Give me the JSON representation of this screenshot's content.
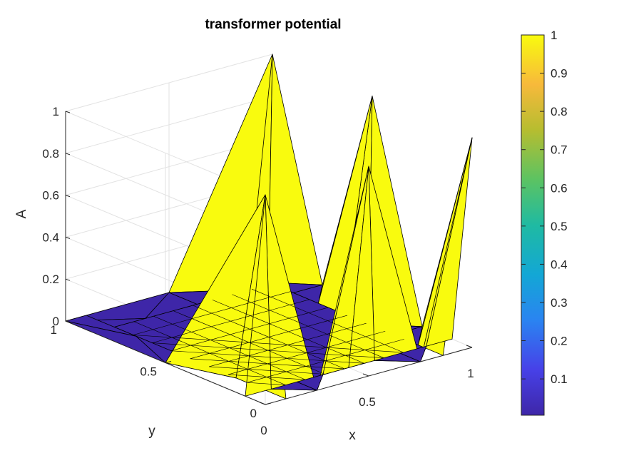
{
  "chart_data": {
    "type": "surface",
    "title": "transformer potential",
    "xlabel": "x",
    "ylabel": "y",
    "zlabel": "A",
    "xlim": [
      0,
      1
    ],
    "ylim": [
      0,
      1
    ],
    "zlim": [
      0,
      1
    ],
    "x_ticks": [
      "0",
      "0.5",
      "1"
    ],
    "y_ticks": [
      "0",
      "0.5",
      "1"
    ],
    "z_ticks": [
      "0",
      "0.2",
      "0.4",
      "0.6",
      "0.8",
      "1"
    ],
    "colorbar": {
      "ticks": [
        "0.1",
        "0.2",
        "0.3",
        "0.4",
        "0.5",
        "0.6",
        "0.7",
        "0.8",
        "0.9",
        "1"
      ],
      "colormap": "parula",
      "colors": [
        "#3e26a8",
        "#4741e8",
        "#2a84f1",
        "#13a7d5",
        "#1fbaa2",
        "#5cc362",
        "#b6bd30",
        "#f7b93b",
        "#f9fb0e"
      ]
    },
    "surface_colors": {
      "high": "#f9fb0e",
      "low": "#3e26a8"
    },
    "boundary_x_y0": [
      {
        "x": 0,
        "A": 1
      },
      {
        "x": 0.25,
        "A": 0
      },
      {
        "x": 0.5,
        "A": 1
      },
      {
        "x": 0.75,
        "A": 0
      },
      {
        "x": 1,
        "A": 1
      }
    ],
    "boundary_y_x1": [
      {
        "y": 0,
        "A": 1
      },
      {
        "y": 0.25,
        "A": 0
      },
      {
        "y": 0.5,
        "A": 1
      },
      {
        "y": 0.75,
        "A": 0
      },
      {
        "y": 1,
        "A": 1
      }
    ],
    "boundary_y_x0": [
      {
        "y": 0,
        "A": 1
      },
      {
        "y": 0.5,
        "A": 0
      },
      {
        "y": 1,
        "A": 0
      }
    ],
    "boundary_x_y1": [
      {
        "x": 0,
        "A": 0
      },
      {
        "x": 0.5,
        "A": 0
      },
      {
        "x": 1,
        "A": 1
      }
    ],
    "interior_value": 0
  }
}
